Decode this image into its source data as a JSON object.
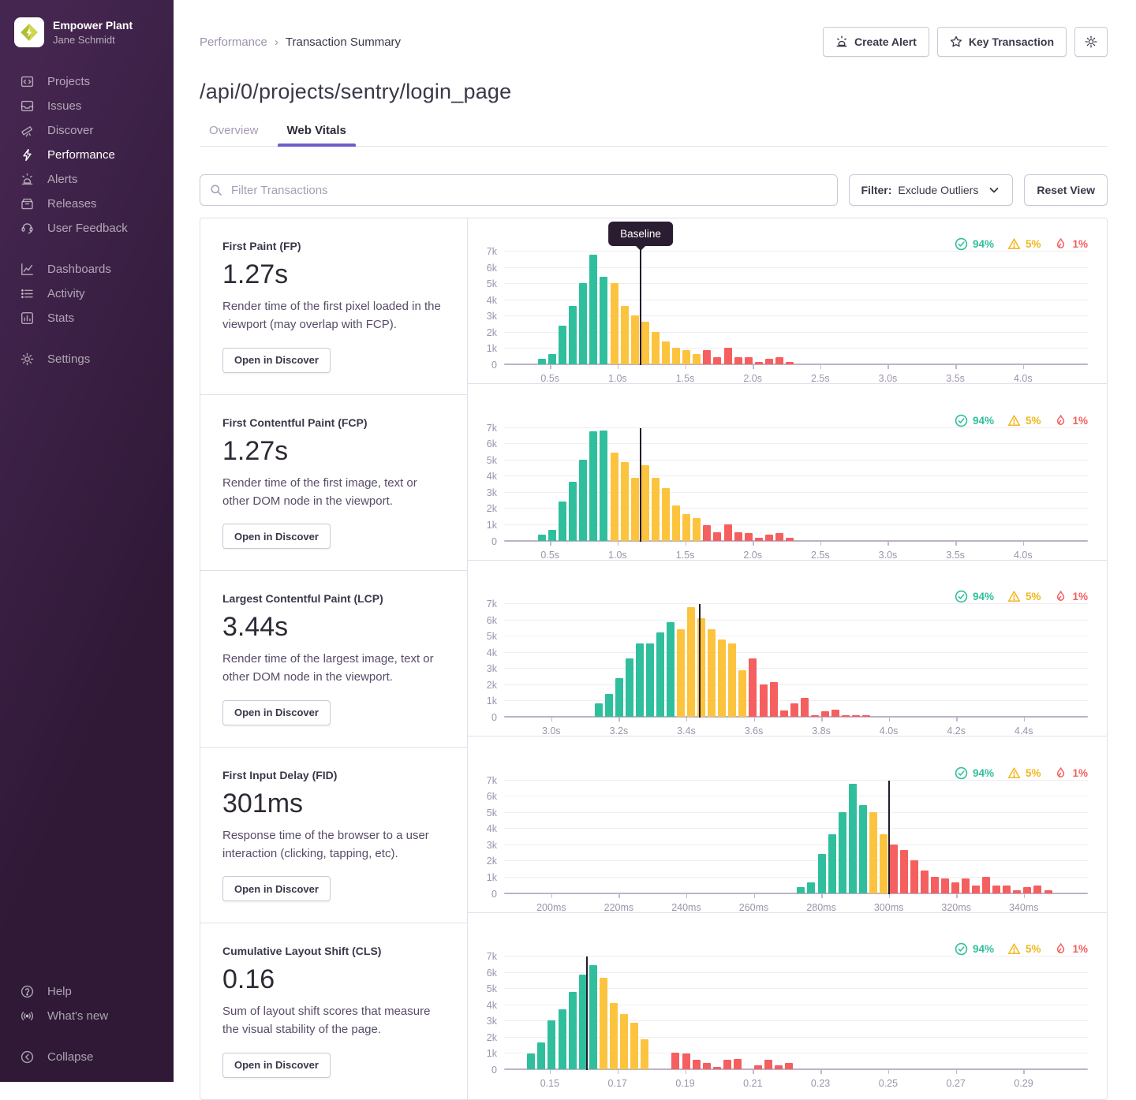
{
  "colors": {
    "good": "#30bf9c",
    "meh": "#fcc43e",
    "poor": "#f55f5f",
    "accent": "#6c5fc7",
    "baseline": "#231a2b"
  },
  "sidebar": {
    "org_name": "Empower Plant",
    "user_name": "Jane Schmidt",
    "primary": [
      {
        "label": "Projects",
        "icon": "projects"
      },
      {
        "label": "Issues",
        "icon": "issues"
      },
      {
        "label": "Discover",
        "icon": "discover"
      },
      {
        "label": "Performance",
        "icon": "performance",
        "active": true
      },
      {
        "label": "Alerts",
        "icon": "alerts"
      },
      {
        "label": "Releases",
        "icon": "releases"
      },
      {
        "label": "User Feedback",
        "icon": "user-feedback"
      }
    ],
    "secondary": [
      {
        "label": "Dashboards",
        "icon": "dashboards"
      },
      {
        "label": "Activity",
        "icon": "activity"
      },
      {
        "label": "Stats",
        "icon": "stats"
      }
    ],
    "tertiary": [
      {
        "label": "Settings",
        "icon": "settings"
      }
    ],
    "footer": [
      {
        "label": "Help",
        "icon": "help"
      },
      {
        "label": "What's new",
        "icon": "whats-new"
      }
    ],
    "collapse": {
      "label": "Collapse",
      "icon": "collapse"
    }
  },
  "header": {
    "breadcrumbs": [
      "Performance",
      "Transaction Summary"
    ],
    "separator": "›",
    "actions": {
      "create_alert": "Create Alert",
      "key_transaction": "Key Transaction"
    },
    "title": "/api/0/projects/sentry/login_page",
    "tabs": [
      {
        "label": "Overview",
        "active": false
      },
      {
        "label": "Web Vitals",
        "active": true
      }
    ]
  },
  "toolbar": {
    "filter_placeholder": "Filter Transactions",
    "filter_prefix": "Filter:",
    "filter_value": "Exclude Outliers",
    "reset_label": "Reset View"
  },
  "baseline_label": "Baseline",
  "open_in_discover": "Open in Discover",
  "vitals": [
    {
      "slug": "fp",
      "name": "First Paint (FP)",
      "value": "1.27s",
      "description": "Render time of the first pixel loaded in the viewport (may overlap with FCP).",
      "legend": {
        "good": "94%",
        "meh": "5%",
        "poor": "1%"
      },
      "show_baseline_tooltip": true,
      "chart": {
        "type": "histogram-bar",
        "y_max": 7,
        "y_ticks": [
          "0",
          "1k",
          "2k",
          "3k",
          "4k",
          "5k",
          "6k",
          "7k"
        ],
        "x_min": 0.16,
        "x_max": 4.48,
        "baseline": 1.17,
        "ticks": [
          {
            "v": 0.5,
            "label": "0.5s"
          },
          {
            "v": 1.0,
            "label": "1.0s"
          },
          {
            "v": 1.5,
            "label": "1.5s"
          },
          {
            "v": 2.0,
            "label": "2.0s"
          },
          {
            "v": 2.5,
            "label": "2.5s"
          },
          {
            "v": 3.0,
            "label": "3.0s"
          },
          {
            "v": 3.5,
            "label": "3.5s"
          },
          {
            "v": 4.0,
            "label": "4.0s"
          }
        ],
        "bar_start": 0.44,
        "bar_pitch": 0.0764,
        "bars": [
          {
            "v": 0.35,
            "c": "good"
          },
          {
            "v": 0.65,
            "c": "good"
          },
          {
            "v": 2.4,
            "c": "good"
          },
          {
            "v": 3.6,
            "c": "good"
          },
          {
            "v": 5.0,
            "c": "good"
          },
          {
            "v": 6.75,
            "c": "good"
          },
          {
            "v": 5.4,
            "c": "good"
          },
          {
            "v": 5.0,
            "c": "meh"
          },
          {
            "v": 3.6,
            "c": "meh"
          },
          {
            "v": 3.0,
            "c": "meh"
          },
          {
            "v": 2.65,
            "c": "meh"
          },
          {
            "v": 2.0,
            "c": "meh"
          },
          {
            "v": 1.4,
            "c": "meh"
          },
          {
            "v": 1.0,
            "c": "meh"
          },
          {
            "v": 0.9,
            "c": "meh"
          },
          {
            "v": 0.65,
            "c": "meh"
          },
          {
            "v": 0.9,
            "c": "poor"
          },
          {
            "v": 0.45,
            "c": "poor"
          },
          {
            "v": 1.0,
            "c": "poor"
          },
          {
            "v": 0.45,
            "c": "poor"
          },
          {
            "v": 0.45,
            "c": "poor"
          },
          {
            "v": 0.15,
            "c": "poor"
          },
          {
            "v": 0.35,
            "c": "poor"
          },
          {
            "v": 0.45,
            "c": "poor"
          },
          {
            "v": 0.15,
            "c": "poor"
          }
        ]
      }
    },
    {
      "slug": "fcp",
      "name": "First Contentful Paint (FCP)",
      "value": "1.27s",
      "description": "Render time of the first image, text or other DOM node in the viewport.",
      "legend": {
        "good": "94%",
        "meh": "5%",
        "poor": "1%"
      },
      "show_baseline_tooltip": false,
      "chart": {
        "type": "histogram-bar",
        "y_max": 7,
        "y_ticks": [
          "0",
          "1k",
          "2k",
          "3k",
          "4k",
          "5k",
          "6k",
          "7k"
        ],
        "x_min": 0.16,
        "x_max": 4.48,
        "baseline": 1.17,
        "ticks": [
          {
            "v": 0.5,
            "label": "0.5s"
          },
          {
            "v": 1.0,
            "label": "1.0s"
          },
          {
            "v": 1.5,
            "label": "1.5s"
          },
          {
            "v": 2.0,
            "label": "2.0s"
          },
          {
            "v": 2.5,
            "label": "2.5s"
          },
          {
            "v": 3.0,
            "label": "3.0s"
          },
          {
            "v": 3.5,
            "label": "3.5s"
          },
          {
            "v": 4.0,
            "label": "4.0s"
          }
        ],
        "bar_start": 0.44,
        "bar_pitch": 0.0764,
        "bars": [
          {
            "v": 0.35,
            "c": "good"
          },
          {
            "v": 0.65,
            "c": "good"
          },
          {
            "v": 2.4,
            "c": "good"
          },
          {
            "v": 3.6,
            "c": "good"
          },
          {
            "v": 5.0,
            "c": "good"
          },
          {
            "v": 6.75,
            "c": "good"
          },
          {
            "v": 6.8,
            "c": "good"
          },
          {
            "v": 5.4,
            "c": "meh"
          },
          {
            "v": 4.85,
            "c": "meh"
          },
          {
            "v": 3.85,
            "c": "meh"
          },
          {
            "v": 4.65,
            "c": "meh"
          },
          {
            "v": 3.85,
            "c": "meh"
          },
          {
            "v": 3.25,
            "c": "meh"
          },
          {
            "v": 2.15,
            "c": "meh"
          },
          {
            "v": 1.65,
            "c": "meh"
          },
          {
            "v": 1.4,
            "c": "meh"
          },
          {
            "v": 0.95,
            "c": "poor"
          },
          {
            "v": 0.5,
            "c": "poor"
          },
          {
            "v": 1.0,
            "c": "poor"
          },
          {
            "v": 0.5,
            "c": "poor"
          },
          {
            "v": 0.45,
            "c": "poor"
          },
          {
            "v": 0.15,
            "c": "poor"
          },
          {
            "v": 0.35,
            "c": "poor"
          },
          {
            "v": 0.45,
            "c": "poor"
          },
          {
            "v": 0.15,
            "c": "poor"
          }
        ]
      }
    },
    {
      "slug": "lcp",
      "name": "Largest Contentful Paint (LCP)",
      "value": "3.44s",
      "description": "Render time of the largest image, text or other DOM node in the viewport.",
      "legend": {
        "good": "94%",
        "meh": "5%",
        "poor": "1%"
      },
      "show_baseline_tooltip": false,
      "chart": {
        "type": "histogram-bar",
        "y_max": 7,
        "y_ticks": [
          "0",
          "1k",
          "2k",
          "3k",
          "4k",
          "5k",
          "6k",
          "7k"
        ],
        "x_min": 2.86,
        "x_max": 4.59,
        "baseline": 3.44,
        "ticks": [
          {
            "v": 3.0,
            "label": "3.0s"
          },
          {
            "v": 3.2,
            "label": "3.2s"
          },
          {
            "v": 3.4,
            "label": "3.4s"
          },
          {
            "v": 3.6,
            "label": "3.6s"
          },
          {
            "v": 3.8,
            "label": "3.8s"
          },
          {
            "v": 4.0,
            "label": "4.0s"
          },
          {
            "v": 4.2,
            "label": "4.2s"
          },
          {
            "v": 4.4,
            "label": "4.4s"
          }
        ],
        "bar_start": 3.14,
        "bar_pitch": 0.0305,
        "bars": [
          {
            "v": 0.85,
            "c": "good"
          },
          {
            "v": 1.4,
            "c": "good"
          },
          {
            "v": 2.4,
            "c": "good"
          },
          {
            "v": 3.6,
            "c": "good"
          },
          {
            "v": 4.5,
            "c": "good"
          },
          {
            "v": 4.5,
            "c": "good"
          },
          {
            "v": 5.2,
            "c": "good"
          },
          {
            "v": 5.85,
            "c": "good"
          },
          {
            "v": 5.4,
            "c": "meh"
          },
          {
            "v": 6.75,
            "c": "meh"
          },
          {
            "v": 6.1,
            "c": "meh"
          },
          {
            "v": 5.4,
            "c": "meh"
          },
          {
            "v": 4.75,
            "c": "meh"
          },
          {
            "v": 4.5,
            "c": "meh"
          },
          {
            "v": 2.85,
            "c": "meh"
          },
          {
            "v": 3.6,
            "c": "poor"
          },
          {
            "v": 2.0,
            "c": "poor"
          },
          {
            "v": 2.15,
            "c": "poor"
          },
          {
            "v": 0.4,
            "c": "poor"
          },
          {
            "v": 0.85,
            "c": "poor"
          },
          {
            "v": 1.15,
            "c": "poor"
          },
          {
            "v": 0.1,
            "c": "poor"
          },
          {
            "v": 0.35,
            "c": "poor"
          },
          {
            "v": 0.45,
            "c": "poor"
          },
          {
            "v": 0.1,
            "c": "poor"
          },
          {
            "v": 0.1,
            "c": "poor"
          },
          {
            "v": 0.1,
            "c": "poor"
          }
        ]
      }
    },
    {
      "slug": "fid",
      "name": "First Input Delay (FID)",
      "value": "301ms",
      "description": "Response time of the browser to a user interaction (clicking, tapping, etc).",
      "legend": {
        "good": "94%",
        "meh": "5%",
        "poor": "1%"
      },
      "show_baseline_tooltip": false,
      "chart": {
        "type": "histogram-bar",
        "y_max": 7,
        "y_ticks": [
          "0",
          "1k",
          "2k",
          "3k",
          "4k",
          "5k",
          "6k",
          "7k"
        ],
        "x_min": 186,
        "x_max": 359,
        "baseline": 300,
        "ticks": [
          {
            "v": 200,
            "label": "200ms"
          },
          {
            "v": 220,
            "label": "220ms"
          },
          {
            "v": 240,
            "label": "240ms"
          },
          {
            "v": 260,
            "label": "260ms"
          },
          {
            "v": 280,
            "label": "280ms"
          },
          {
            "v": 300,
            "label": "300ms"
          },
          {
            "v": 320,
            "label": "320ms"
          },
          {
            "v": 340,
            "label": "340ms"
          }
        ],
        "bar_start": 274,
        "bar_pitch": 3.05,
        "bars": [
          {
            "v": 0.35,
            "c": "good"
          },
          {
            "v": 0.65,
            "c": "good"
          },
          {
            "v": 2.4,
            "c": "good"
          },
          {
            "v": 3.6,
            "c": "good"
          },
          {
            "v": 5.0,
            "c": "good"
          },
          {
            "v": 6.75,
            "c": "good"
          },
          {
            "v": 5.4,
            "c": "good"
          },
          {
            "v": 5.0,
            "c": "meh"
          },
          {
            "v": 3.6,
            "c": "meh"
          },
          {
            "v": 3.0,
            "c": "poor"
          },
          {
            "v": 2.65,
            "c": "poor"
          },
          {
            "v": 2.0,
            "c": "poor"
          },
          {
            "v": 1.4,
            "c": "poor"
          },
          {
            "v": 1.0,
            "c": "poor"
          },
          {
            "v": 0.9,
            "c": "poor"
          },
          {
            "v": 0.65,
            "c": "poor"
          },
          {
            "v": 0.9,
            "c": "poor"
          },
          {
            "v": 0.45,
            "c": "poor"
          },
          {
            "v": 1.0,
            "c": "poor"
          },
          {
            "v": 0.45,
            "c": "poor"
          },
          {
            "v": 0.45,
            "c": "poor"
          },
          {
            "v": 0.15,
            "c": "poor"
          },
          {
            "v": 0.35,
            "c": "poor"
          },
          {
            "v": 0.45,
            "c": "poor"
          },
          {
            "v": 0.15,
            "c": "poor"
          }
        ]
      }
    },
    {
      "slug": "cls",
      "name": "Cumulative Layout Shift (CLS)",
      "value": "0.16",
      "description": "Sum of layout shift scores that measure the visual stability of the page.",
      "legend": {
        "good": "94%",
        "meh": "5%",
        "poor": "1%"
      },
      "show_baseline_tooltip": false,
      "chart": {
        "type": "histogram-bar",
        "y_max": 7,
        "y_ticks": [
          "0",
          "1k",
          "2k",
          "3k",
          "4k",
          "5k",
          "6k",
          "7k"
        ],
        "x_min": 0.1365,
        "x_max": 0.309,
        "baseline": 0.161,
        "ticks": [
          {
            "v": 0.15,
            "label": "0.15"
          },
          {
            "v": 0.17,
            "label": "0.17"
          },
          {
            "v": 0.19,
            "label": "0.19"
          },
          {
            "v": 0.21,
            "label": "0.21"
          },
          {
            "v": 0.23,
            "label": "0.23"
          },
          {
            "v": 0.25,
            "label": "0.25"
          },
          {
            "v": 0.27,
            "label": "0.27"
          },
          {
            "v": 0.29,
            "label": "0.29"
          }
        ],
        "bar_start": 0.1445,
        "bar_pitch": 0.00305,
        "bars": [
          {
            "v": 0.95,
            "c": "good"
          },
          {
            "v": 1.65,
            "c": "good"
          },
          {
            "v": 3.0,
            "c": "good"
          },
          {
            "v": 3.7,
            "c": "good"
          },
          {
            "v": 4.75,
            "c": "good"
          },
          {
            "v": 5.85,
            "c": "good"
          },
          {
            "v": 6.4,
            "c": "good"
          },
          {
            "v": 5.65,
            "c": "meh"
          },
          {
            "v": 4.1,
            "c": "meh"
          },
          {
            "v": 3.4,
            "c": "meh"
          },
          {
            "v": 2.85,
            "c": "meh"
          },
          {
            "v": 1.85,
            "c": "meh"
          },
          {
            "v": 0,
            "c": "poor"
          },
          {
            "v": 0,
            "c": "poor"
          },
          {
            "v": 1.0,
            "c": "poor"
          },
          {
            "v": 0.95,
            "c": "poor"
          },
          {
            "v": 0.6,
            "c": "poor"
          },
          {
            "v": 0.4,
            "c": "poor"
          },
          {
            "v": 0.15,
            "c": "poor"
          },
          {
            "v": 0.6,
            "c": "poor"
          },
          {
            "v": 0.65,
            "c": "poor"
          },
          {
            "v": 0,
            "c": "poor"
          },
          {
            "v": 0.25,
            "c": "poor"
          },
          {
            "v": 0.6,
            "c": "poor"
          },
          {
            "v": 0.25,
            "c": "poor"
          },
          {
            "v": 0.4,
            "c": "poor"
          }
        ]
      }
    }
  ]
}
